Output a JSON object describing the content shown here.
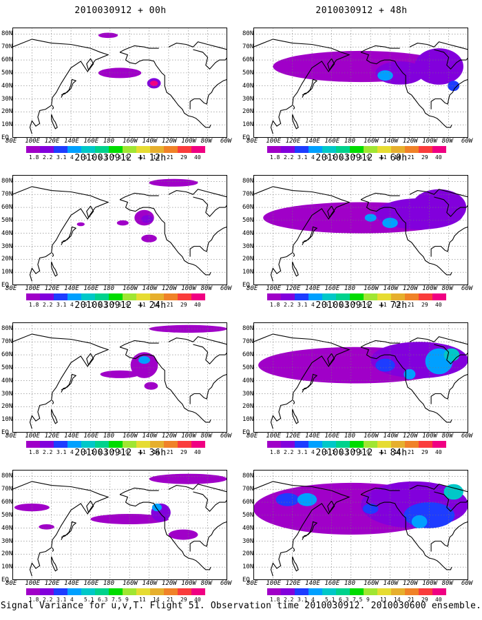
{
  "caption": "Signal Variance for u,v,T. Flight 51. Observation time 2010030912. 2010030600 ensemble.",
  "map_axes": {
    "lat_labels": [
      "80N",
      "70N",
      "60N",
      "50N",
      "40N",
      "30N",
      "20N",
      "10N",
      "EQ"
    ],
    "lon_labels": [
      "80E",
      "100E",
      "120E",
      "140E",
      "160E",
      "180",
      "160W",
      "140W",
      "120W",
      "100W",
      "80W",
      "60W"
    ]
  },
  "colorbar": {
    "labels": [
      "1.8",
      "2.2",
      "3.1",
      "4",
      "5.1",
      "6.3",
      "7.5",
      "9",
      "11",
      "14",
      "21",
      "29",
      "40"
    ],
    "colors": [
      "#a000c8",
      "#8200dc",
      "#1e3cff",
      "#00a0ff",
      "#00c8c8",
      "#00d28c",
      "#00dc00",
      "#a0e632",
      "#e6dc32",
      "#e6af2d",
      "#f08228",
      "#fa3c3c",
      "#f00082"
    ]
  },
  "panels": [
    {
      "title": "2010030912 + 00h",
      "level": 0
    },
    {
      "title": "2010030912 + 12h",
      "level": 1
    },
    {
      "title": "2010030912 + 24h",
      "level": 2
    },
    {
      "title": "2010030912 + 36h",
      "level": 3
    },
    {
      "title": "2010030912 + 48h",
      "level": 4
    },
    {
      "title": "2010030912 + 60h",
      "level": 5
    },
    {
      "title": "2010030912 + 72h",
      "level": 6
    },
    {
      "title": "2010030912 + 84h",
      "level": 7
    }
  ]
}
